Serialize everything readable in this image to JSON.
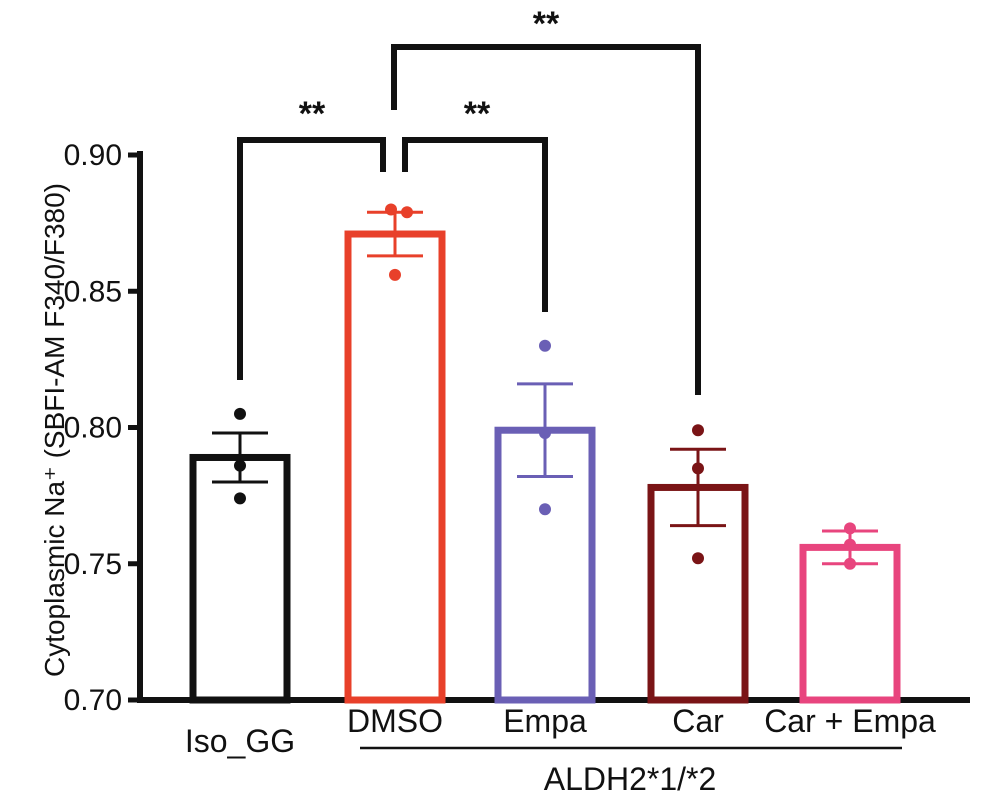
{
  "chart_data": {
    "type": "bar",
    "ylabel": "Cytoplasmic Na⁺ (SBFI-AM F340/F380)",
    "ylim": [
      0.7,
      0.9
    ],
    "yticks": [
      "0.70",
      "0.75",
      "0.80",
      "0.85",
      "0.90"
    ],
    "ytick_values": [
      0.7,
      0.75,
      0.8,
      0.85,
      0.9
    ],
    "categories": [
      "Iso_GG",
      "DMSO",
      "Empa",
      "Car",
      "Car + Empa"
    ],
    "values": [
      0.789,
      0.871,
      0.799,
      0.778,
      0.756
    ],
    "sem": [
      0.009,
      0.008,
      0.017,
      0.014,
      0.006
    ],
    "points": [
      [
        0.805,
        0.786,
        0.774
      ],
      [
        0.88,
        0.879,
        0.856
      ],
      [
        0.83,
        0.798,
        0.77
      ],
      [
        0.799,
        0.785,
        0.752
      ],
      [
        0.763,
        0.757,
        0.75
      ]
    ],
    "colors": [
      "#111111",
      "#e8402a",
      "#6a5fb5",
      "#7a1416",
      "#e8457e"
    ],
    "group_label": "ALDH2*1/*2",
    "group_members": [
      "DMSO",
      "Empa",
      "Car",
      "Car + Empa"
    ],
    "significance": [
      {
        "from": "Iso_GG",
        "to": "DMSO",
        "label": "**"
      },
      {
        "from": "DMSO",
        "to": "Empa",
        "label": "**"
      },
      {
        "from": "DMSO",
        "to": "Car",
        "label": "**"
      }
    ]
  }
}
